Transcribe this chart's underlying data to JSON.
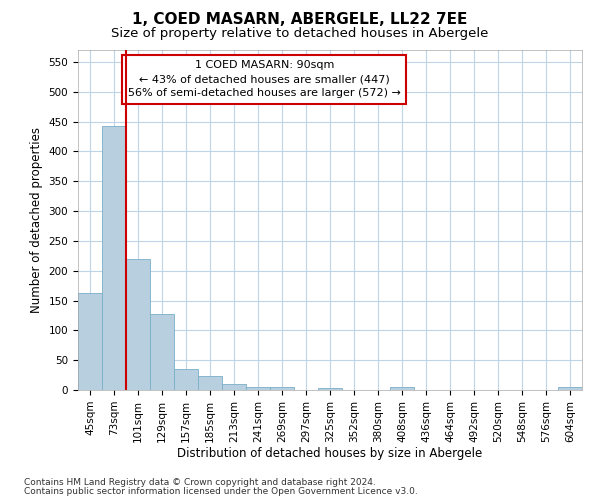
{
  "title": "1, COED MASARN, ABERGELE, LL22 7EE",
  "subtitle": "Size of property relative to detached houses in Abergele",
  "xlabel": "Distribution of detached houses by size in Abergele",
  "ylabel": "Number of detached properties",
  "footnote1": "Contains HM Land Registry data © Crown copyright and database right 2024.",
  "footnote2": "Contains public sector information licensed under the Open Government Licence v3.0.",
  "categories": [
    "45sqm",
    "73sqm",
    "101sqm",
    "129sqm",
    "157sqm",
    "185sqm",
    "213sqm",
    "241sqm",
    "269sqm",
    "297sqm",
    "325sqm",
    "352sqm",
    "380sqm",
    "408sqm",
    "436sqm",
    "464sqm",
    "492sqm",
    "520sqm",
    "548sqm",
    "576sqm",
    "604sqm"
  ],
  "values": [
    163,
    443,
    220,
    128,
    36,
    24,
    10,
    5,
    5,
    0,
    4,
    0,
    0,
    5,
    0,
    0,
    0,
    0,
    0,
    0,
    5
  ],
  "bar_color": "#b8cfe0",
  "bar_edge_color": "#7aafc8",
  "property_line_x": 2.0,
  "annotation_text": "1 COED MASARN: 90sqm\n← 43% of detached houses are smaller (447)\n56% of semi-detached houses are larger (572) →",
  "annotation_box_color": "#ffffff",
  "annotation_box_edge_color": "#cc0000",
  "red_line_color": "#cc0000",
  "ylim": [
    0,
    570
  ],
  "yticks": [
    0,
    50,
    100,
    150,
    200,
    250,
    300,
    350,
    400,
    450,
    500,
    550
  ],
  "background_color": "#ffffff",
  "grid_color": "#c0d4e8",
  "title_fontsize": 11,
  "subtitle_fontsize": 9.5,
  "axis_label_fontsize": 8.5,
  "ylabel_fontsize": 8.5,
  "tick_fontsize": 7.5,
  "footnote_fontsize": 6.5
}
